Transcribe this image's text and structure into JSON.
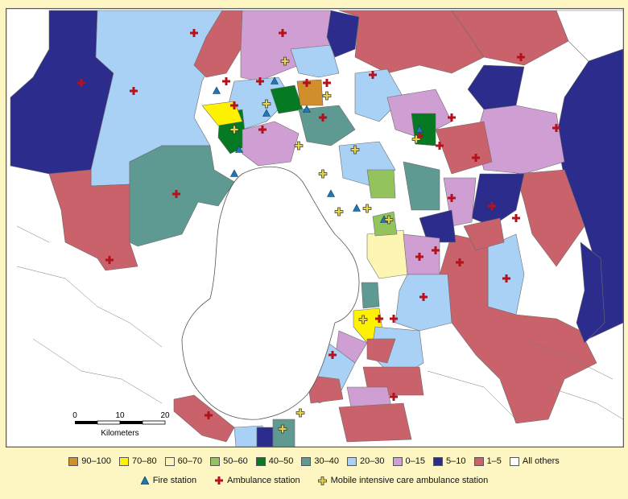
{
  "legend": {
    "ranges": [
      {
        "label": "90–100",
        "color": "#d18f2c"
      },
      {
        "label": "70–80",
        "color": "#fff200"
      },
      {
        "label": "60–70",
        "color": "#fdf6b3"
      },
      {
        "label": "50–60",
        "color": "#93c35c"
      },
      {
        "label": "40–50",
        "color": "#067a22"
      },
      {
        "label": "30–40",
        "color": "#5e9a91"
      },
      {
        "label": "20–30",
        "color": "#a9d1f6"
      },
      {
        "label": "0–15",
        "color": "#cf9ed3"
      },
      {
        "label": "5–10",
        "color": "#2c2c8c"
      },
      {
        "label": "1–5",
        "color": "#c9626a"
      },
      {
        "label": "All others",
        "color": "#ffffff"
      }
    ],
    "symbols": {
      "fire": "Fire station",
      "ambulance": "Ambulance station",
      "micu": "Mobile intensive care ambulance station"
    }
  },
  "scale_bar": {
    "ticks": [
      "0",
      "10",
      "20"
    ],
    "unit": "Kilometers"
  },
  "symbol_colors": {
    "fire": "#1f78b4",
    "ambulance": "#b3121c",
    "micu": "#e6d44a"
  }
}
